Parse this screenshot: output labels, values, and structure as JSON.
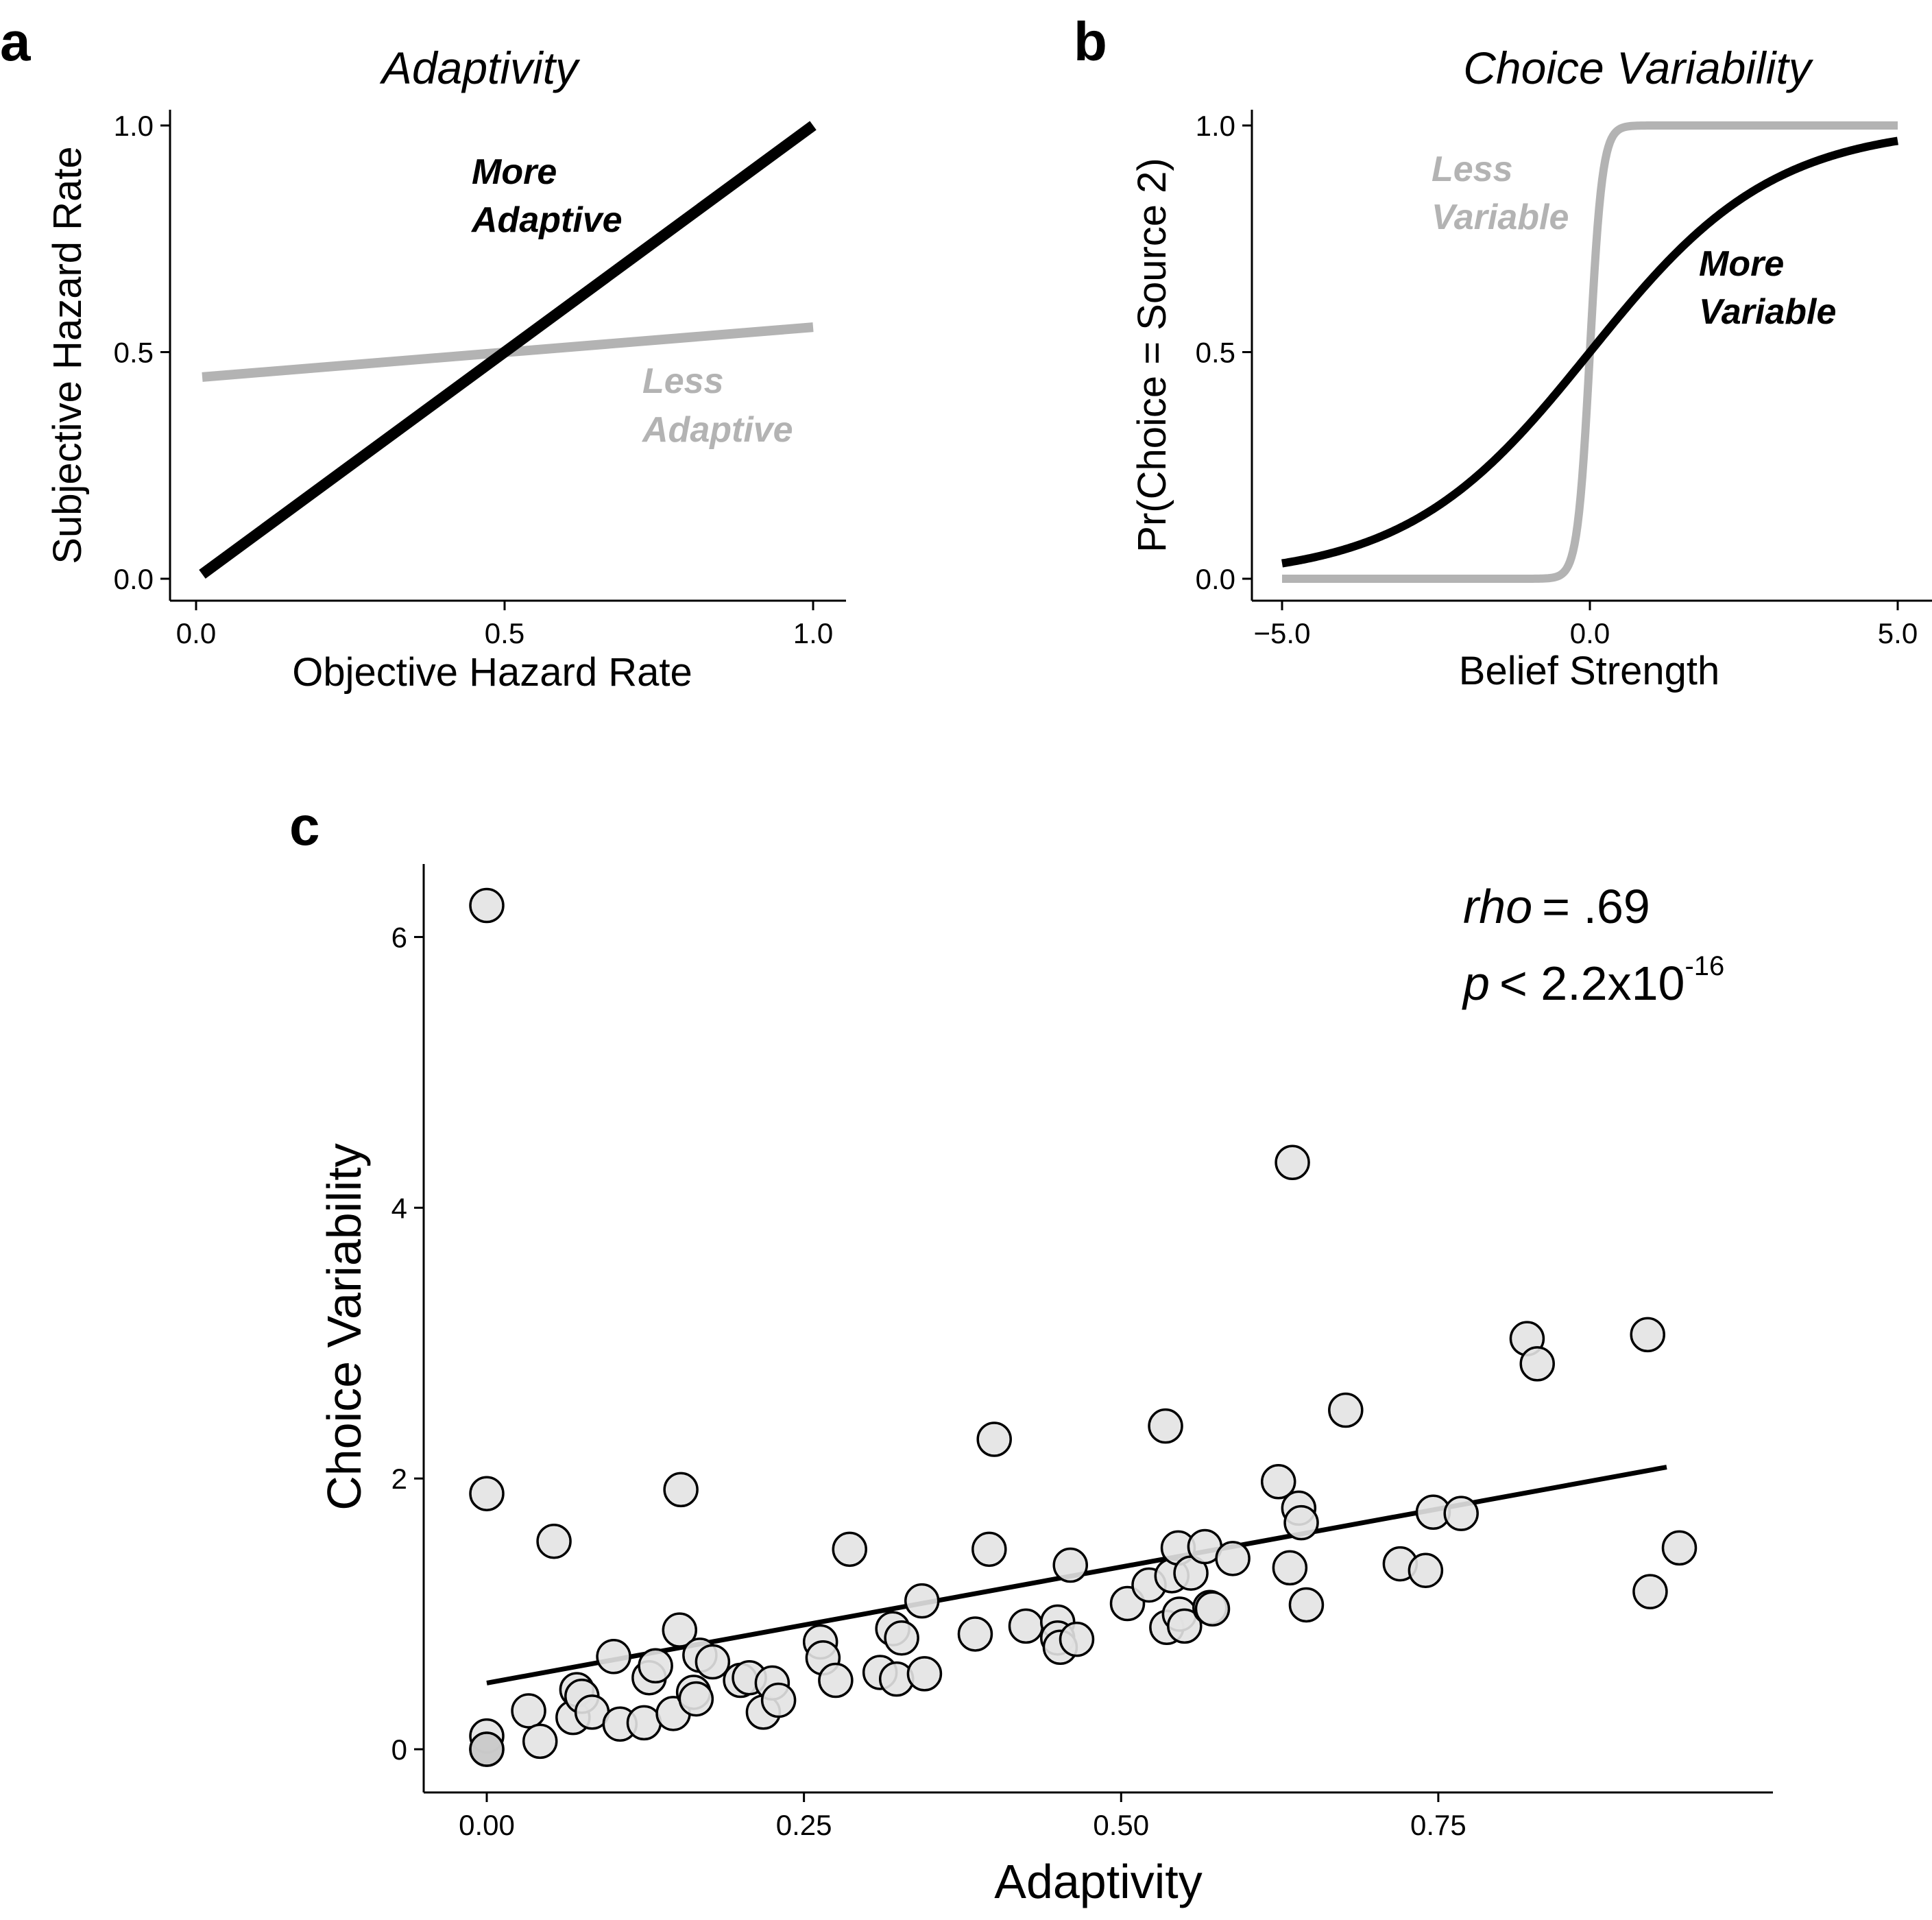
{
  "panels": {
    "a": {
      "letter": "a"
    },
    "b": {
      "letter": "b"
    },
    "c": {
      "letter": "c"
    }
  },
  "colors": {
    "dark": "#000000",
    "light": "#b3b3b3",
    "point_fill": "#e3e3e3",
    "point_fill_dup": "#c8c8c8"
  },
  "chart_data": [
    {
      "id": "a",
      "type": "line",
      "title": "Adaptivity",
      "xlabel": "Objective Hazard Rate",
      "ylabel": "Subjective Hazard Rate",
      "xlim": [
        0,
        1
      ],
      "ylim": [
        0,
        1
      ],
      "xticks": [
        "0.0",
        "0.5",
        "1.0"
      ],
      "yticks": [
        "0.0",
        "0.5",
        "1.0"
      ],
      "grid": false,
      "series": [
        {
          "name": "More Adaptive",
          "color": "#000000",
          "x": [
            0.01,
            1.0
          ],
          "y": [
            0.01,
            1.0
          ]
        },
        {
          "name": "Less Adaptive",
          "color": "#b3b3b3",
          "x": [
            0.01,
            1.0
          ],
          "y": [
            0.445,
            0.555
          ]
        }
      ],
      "annotations": [
        {
          "lines": [
            "More",
            "Adaptive"
          ],
          "color": "#000000"
        },
        {
          "lines": [
            "Less",
            "Adaptive"
          ],
          "color": "#b3b3b3"
        }
      ]
    },
    {
      "id": "b",
      "type": "line",
      "title": "Choice Variability",
      "xlabel": "Belief Strength",
      "ylabel": "Pr(Choice = Source 2)",
      "xlim": [
        -5,
        5
      ],
      "ylim": [
        0,
        1
      ],
      "xticks": [
        "−5.0",
        "0.0",
        "5.0"
      ],
      "yticks": [
        "0.0",
        "0.5",
        "1.0"
      ],
      "grid": false,
      "series": [
        {
          "name": "Less Variable",
          "color": "#b3b3b3",
          "curve": "logistic",
          "slope": 10,
          "x_range": [
            -5,
            5
          ]
        },
        {
          "name": "More Variable",
          "color": "#000000",
          "curve": "logistic",
          "slope": 0.67,
          "x_range": [
            -5,
            5
          ]
        }
      ],
      "annotations": [
        {
          "lines": [
            "Less",
            "Variable"
          ],
          "color": "#b3b3b3"
        },
        {
          "lines": [
            "More",
            "Variable"
          ],
          "color": "#000000"
        }
      ]
    },
    {
      "id": "c",
      "type": "scatter",
      "xlabel": "Adaptivity",
      "ylabel": "Choice Variability",
      "xlim": [
        0,
        0.95
      ],
      "ylim": [
        0,
        6.6
      ],
      "xticks": [
        "0.00",
        "0.25",
        "0.50",
        "0.75"
      ],
      "yticks": [
        "0",
        "2",
        "4",
        "6"
      ],
      "grid": false,
      "stats": {
        "rho_label": "rho",
        "rho_value": "= .69",
        "p_label": "p",
        "p_value": "< 2.2x10",
        "p_exp": "-16"
      },
      "fit_line": {
        "x": [
          0.0,
          0.93
        ],
        "y": [
          0.5,
          2.13
        ]
      },
      "points": [
        [
          0.0,
          6.37
        ],
        [
          0.0,
          1.93
        ],
        [
          0.0,
          0.1
        ],
        [
          0.0,
          0.0
        ],
        [
          0.0,
          0.0
        ],
        [
          0.033,
          0.29
        ],
        [
          0.042,
          0.06
        ],
        [
          0.053,
          1.57
        ],
        [
          0.068,
          0.24
        ],
        [
          0.071,
          0.45
        ],
        [
          0.075,
          0.4
        ],
        [
          0.083,
          0.28
        ],
        [
          0.1,
          0.7
        ],
        [
          0.105,
          0.19
        ],
        [
          0.124,
          0.2
        ],
        [
          0.128,
          0.54
        ],
        [
          0.133,
          0.63
        ],
        [
          0.147,
          0.27
        ],
        [
          0.152,
          0.9
        ],
        [
          0.153,
          1.96
        ],
        [
          0.163,
          0.43
        ],
        [
          0.165,
          0.38
        ],
        [
          0.168,
          0.71
        ],
        [
          0.178,
          0.66
        ],
        [
          0.2,
          0.52
        ],
        [
          0.207,
          0.54
        ],
        [
          0.218,
          0.28
        ],
        [
          0.225,
          0.5
        ],
        [
          0.23,
          0.37
        ],
        [
          0.263,
          0.81
        ],
        [
          0.265,
          0.69
        ],
        [
          0.275,
          0.52
        ],
        [
          0.286,
          1.51
        ],
        [
          0.31,
          0.58
        ],
        [
          0.32,
          0.91
        ],
        [
          0.323,
          0.53
        ],
        [
          0.327,
          0.84
        ],
        [
          0.343,
          1.12
        ],
        [
          0.345,
          0.57
        ],
        [
          0.385,
          0.87
        ],
        [
          0.396,
          1.51
        ],
        [
          0.4,
          2.34
        ],
        [
          0.425,
          0.93
        ],
        [
          0.45,
          0.96
        ],
        [
          0.45,
          0.84
        ],
        [
          0.452,
          0.77
        ],
        [
          0.46,
          1.39
        ],
        [
          0.465,
          0.83
        ],
        [
          0.505,
          1.1
        ],
        [
          0.522,
          1.24
        ],
        [
          0.535,
          2.44
        ],
        [
          0.536,
          0.92
        ],
        [
          0.54,
          1.31
        ],
        [
          0.545,
          1.52
        ],
        [
          0.546,
          1.02
        ],
        [
          0.55,
          0.93
        ],
        [
          0.555,
          1.33
        ],
        [
          0.566,
          1.53
        ],
        [
          0.57,
          1.07
        ],
        [
          0.572,
          1.06
        ],
        [
          0.588,
          1.44
        ],
        [
          0.624,
          2.02
        ],
        [
          0.633,
          1.37
        ],
        [
          0.635,
          4.43
        ],
        [
          0.64,
          1.82
        ],
        [
          0.642,
          1.71
        ],
        [
          0.646,
          1.09
        ],
        [
          0.677,
          2.56
        ],
        [
          0.72,
          1.4
        ],
        [
          0.74,
          1.35
        ],
        [
          0.746,
          1.79
        ],
        [
          0.768,
          1.78
        ],
        [
          0.82,
          3.1
        ],
        [
          0.828,
          2.91
        ],
        [
          0.915,
          3.13
        ],
        [
          0.917,
          1.19
        ],
        [
          0.94,
          1.52
        ]
      ]
    }
  ]
}
